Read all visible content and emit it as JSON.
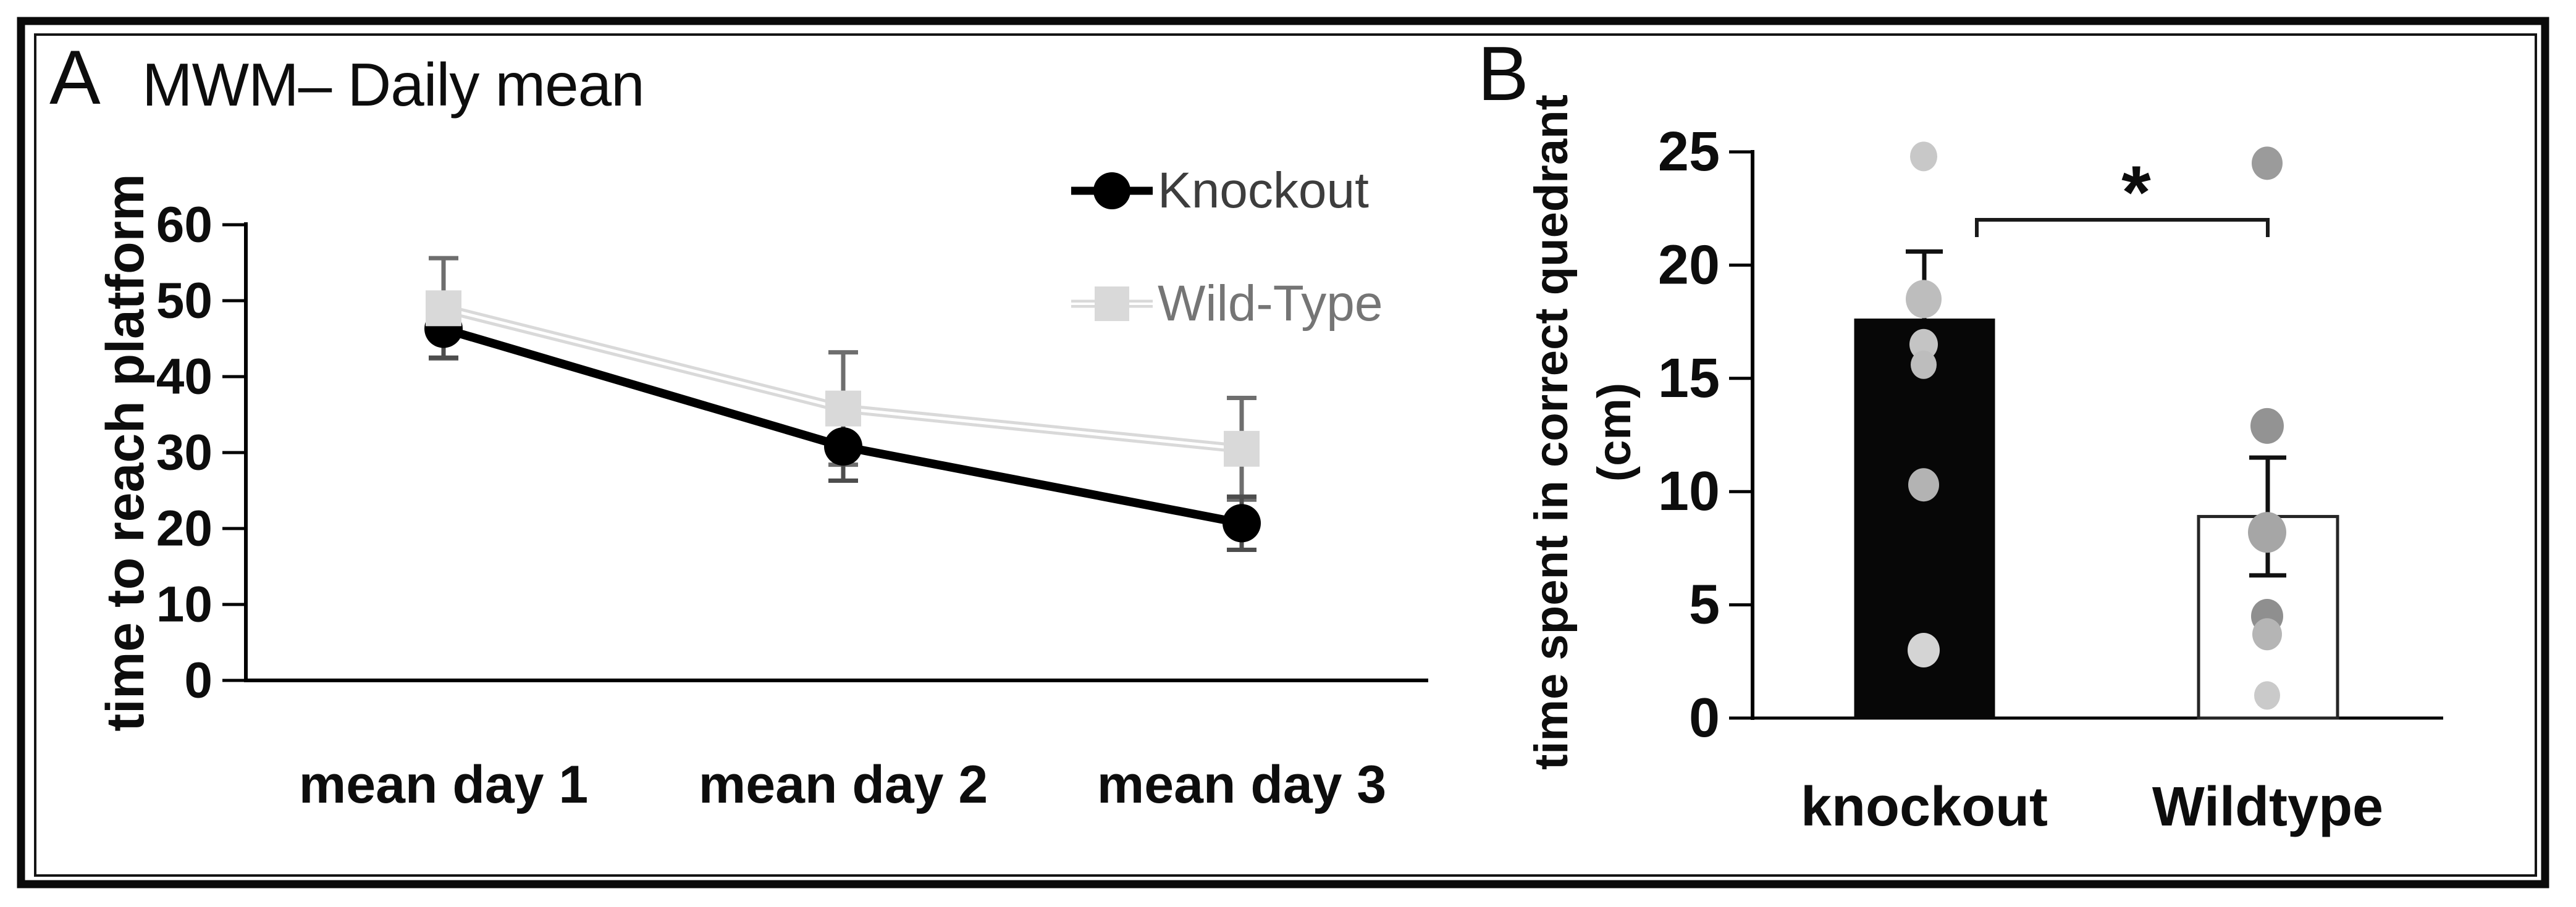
{
  "figure": {
    "background": "#ffffff",
    "border_color": "#0a0a0a"
  },
  "chart_data": [
    {
      "id": "panel_a",
      "type": "line",
      "panel_label": "A",
      "title": "MWM– Daily mean",
      "ylabel": "time to reach platform",
      "categories": [
        "mean day 1",
        "mean day 2",
        "mean day 3"
      ],
      "yticks": [
        0,
        10,
        20,
        30,
        40,
        50,
        60
      ],
      "ylim": [
        0,
        60
      ],
      "grid": false,
      "legend_position": "top-right",
      "series": [
        {
          "name": "Knockout",
          "marker": "circle",
          "color": "#000000",
          "error_color": "#4d4d4d",
          "label_color": "#3d3d3d",
          "values": [
            46.3,
            30.8,
            20.7
          ],
          "errors": [
            3.8,
            4.5,
            3.5
          ]
        },
        {
          "name": "Wild-Type",
          "marker": "square",
          "color": "#d9d9d9",
          "error_color": "#6e6e6e",
          "label_color": "#757575",
          "values": [
            49.0,
            35.8,
            30.5
          ],
          "errors": [
            6.6,
            7.4,
            6.7
          ]
        }
      ]
    },
    {
      "id": "panel_b",
      "type": "bar",
      "panel_label": "B",
      "ylabel_line1": "time spent in correct quedrant",
      "ylabel_line2": "(cm)",
      "categories": [
        "knockout",
        "Wildtype"
      ],
      "yticks": [
        0,
        5,
        10,
        15,
        20,
        25
      ],
      "ylim": [
        0,
        25
      ],
      "values": [
        17.6,
        8.9
      ],
      "errors": [
        3.0,
        2.6
      ],
      "bar_styles": [
        {
          "fill": "#070707",
          "stroke": "#070707"
        },
        {
          "fill": "#ffffff",
          "stroke": "#262626"
        }
      ],
      "scatter": [
        {
          "category": "knockout",
          "points": [
            {
              "v": 24.8,
              "r": 24,
              "c": "#c8c8c8"
            },
            {
              "v": 18.5,
              "r": 31,
              "c": "#bdbdbd"
            },
            {
              "v": 16.5,
              "r": 25,
              "c": "#c4c4c4"
            },
            {
              "v": 15.6,
              "r": 23,
              "c": "#bdbdbd"
            },
            {
              "v": 10.3,
              "r": 27,
              "c": "#b3b3b3"
            },
            {
              "v": 3.0,
              "r": 28,
              "c": "#d4d4d4"
            }
          ]
        },
        {
          "category": "Wildtype",
          "points": [
            {
              "v": 24.5,
              "r": 27,
              "c": "#9b9b9b"
            },
            {
              "v": 12.9,
              "r": 29,
              "c": "#939393"
            },
            {
              "v": 8.2,
              "r": 33,
              "c": "#a6a6a6"
            },
            {
              "v": 4.5,
              "r": 28,
              "c": "#8f8f8f"
            },
            {
              "v": 3.7,
              "r": 26,
              "c": "#b5b5b5"
            },
            {
              "v": 1.0,
              "r": 23,
              "c": "#cacaca"
            }
          ]
        }
      ],
      "significance": {
        "label": "*",
        "between": [
          "knockout",
          "Wildtype"
        ]
      }
    }
  ]
}
